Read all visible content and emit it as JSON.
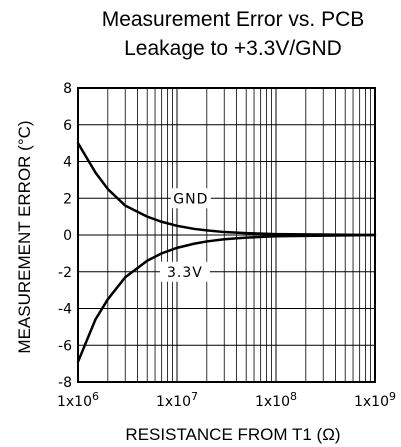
{
  "chart_data": {
    "type": "line",
    "title": [
      "Measurement Error vs. PCB",
      "Leakage to +3.3V/GND"
    ],
    "xlabel": "RESISTANCE FROM T1 (Ω)",
    "ylabel": "MEASUREMENT ERROR (°C)",
    "xscale": "log",
    "xlim": [
      1000000,
      1000000000
    ],
    "ylim": [
      -8,
      8
    ],
    "grid": true,
    "legend": "none",
    "x_ticks": [
      {
        "base": "1x10",
        "exp": "6"
      },
      {
        "base": "1x10",
        "exp": "7"
      },
      {
        "base": "1x10",
        "exp": "8"
      },
      {
        "base": "1x10",
        "exp": "9"
      }
    ],
    "y_ticks": [
      "8",
      "6",
      "4",
      "2",
      "0",
      "-2",
      "-4",
      "-6",
      "-8"
    ],
    "y_tick_values": [
      8,
      6,
      4,
      2,
      0,
      -2,
      -4,
      -6,
      -8
    ],
    "series": [
      {
        "name": "GND",
        "x": [
          1000000,
          1500000,
          2000000,
          3000000,
          5000000,
          7000000,
          10000000,
          15000000,
          20000000,
          30000000,
          50000000,
          100000000,
          1000000000
        ],
        "values": [
          5.0,
          3.4,
          2.5,
          1.6,
          1.0,
          0.72,
          0.5,
          0.33,
          0.25,
          0.16,
          0.1,
          0.05,
          0.0
        ]
      },
      {
        "name": "3.3V",
        "x": [
          1000000,
          1500000,
          2000000,
          3000000,
          5000000,
          7000000,
          10000000,
          15000000,
          20000000,
          30000000,
          50000000,
          100000000,
          1000000000
        ],
        "values": [
          -6.9,
          -4.6,
          -3.5,
          -2.3,
          -1.4,
          -1.0,
          -0.7,
          -0.47,
          -0.35,
          -0.23,
          -0.14,
          -0.07,
          0.0
        ]
      }
    ],
    "colors": {
      "line": "#000000",
      "grid": "#000000",
      "background": "#ffffff"
    }
  }
}
